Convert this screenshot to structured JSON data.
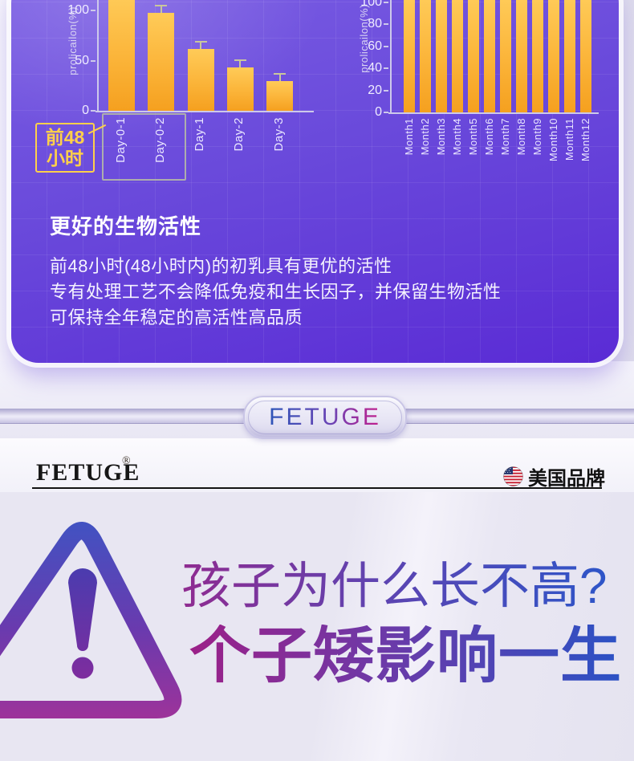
{
  "colors": {
    "card_purple_top": "#7B5FE4",
    "card_purple_bottom": "#5A2BD5",
    "bar_yellow": "#FBB439",
    "callout_yellow": "#FFD04A",
    "axis_light": "#CDC9EA",
    "gradient_magenta": "#9C2088",
    "gradient_blue": "#2B52C5",
    "brand_black": "#141414"
  },
  "chart_card": {
    "heading": "更好的生物活性",
    "lines": [
      "前48小时(48小时内)的初乳具有更优的活性",
      "专有处理工艺不会降低免疫和生长因子，并保留生物活性",
      "可保持全年稳定的高活性高品质"
    ],
    "callout_line1": "前48",
    "callout_line2": "小时"
  },
  "chart_data": [
    {
      "type": "bar",
      "title": "",
      "ylabel": "prolicailon(%)",
      "categories": [
        "Day-0-1",
        "Day-0-2",
        "Day-1",
        "Day-2",
        "Day-3"
      ],
      "values": [
        115,
        98,
        62,
        43,
        30
      ],
      "errors": [
        6,
        5,
        5,
        4,
        4
      ],
      "yticks": [
        0,
        50,
        100
      ],
      "ylim": [
        0,
        110
      ],
      "grid": true,
      "legend": "none",
      "note": "first bar clipped at top edge of image; Day-0-1 and Day-0-2 grouped by box labeled 前48小时"
    },
    {
      "type": "bar",
      "title": "",
      "ylabel": "prolicailon(%)",
      "categories": [
        "Month1",
        "Month2",
        "Month3",
        "Month4",
        "Month5",
        "Month6",
        "Month7",
        "Month8",
        "Month9",
        "Month10",
        "Month11",
        "Month12"
      ],
      "values": [
        104,
        104,
        104,
        104,
        104,
        104,
        104,
        104,
        104,
        104,
        104,
        104
      ],
      "yticks": [
        0,
        20,
        40,
        60,
        80,
        100
      ],
      "ylim": [
        0,
        102
      ],
      "grid": true,
      "legend": "none",
      "note": "all bars at ~100%, tops clipped at image edge"
    }
  ],
  "divider_badge": {
    "text": "FETUGE"
  },
  "brand_bar": {
    "brand": "FETUGE",
    "reg_mark": "®",
    "origin": "美国品牌",
    "flag_icon": "us-flag"
  },
  "warning": {
    "line1": "孩子为什么长不高?",
    "line2": "个子矮影响一生"
  }
}
